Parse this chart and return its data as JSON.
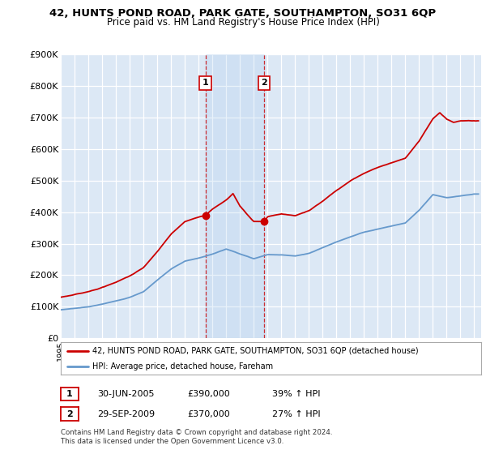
{
  "title": "42, HUNTS POND ROAD, PARK GATE, SOUTHAMPTON, SO31 6QP",
  "subtitle": "Price paid vs. HM Land Registry's House Price Index (HPI)",
  "ylabel_ticks": [
    "£0",
    "£100K",
    "£200K",
    "£300K",
    "£400K",
    "£500K",
    "£600K",
    "£700K",
    "£800K",
    "£900K"
  ],
  "ylim": [
    0,
    900000
  ],
  "yticks": [
    0,
    100000,
    200000,
    300000,
    400000,
    500000,
    600000,
    700000,
    800000,
    900000
  ],
  "xlim_start": 1995.0,
  "xlim_end": 2025.5,
  "red_line_color": "#cc0000",
  "blue_line_color": "#6699cc",
  "sale1_x": 2005.5,
  "sale1_y": 390000,
  "sale1_label": "1",
  "sale2_x": 2009.75,
  "sale2_y": 370000,
  "sale2_label": "2",
  "legend_line1": "42, HUNTS POND ROAD, PARK GATE, SOUTHAMPTON, SO31 6QP (detached house)",
  "legend_line2": "HPI: Average price, detached house, Fareham",
  "table_row1": [
    "1",
    "30-JUN-2005",
    "£390,000",
    "39% ↑ HPI"
  ],
  "table_row2": [
    "2",
    "29-SEP-2009",
    "£370,000",
    "27% ↑ HPI"
  ],
  "footnote": "Contains HM Land Registry data © Crown copyright and database right 2024.\nThis data is licensed under the Open Government Licence v3.0.",
  "background_color": "#ffffff",
  "plot_bg_color": "#dce8f5"
}
